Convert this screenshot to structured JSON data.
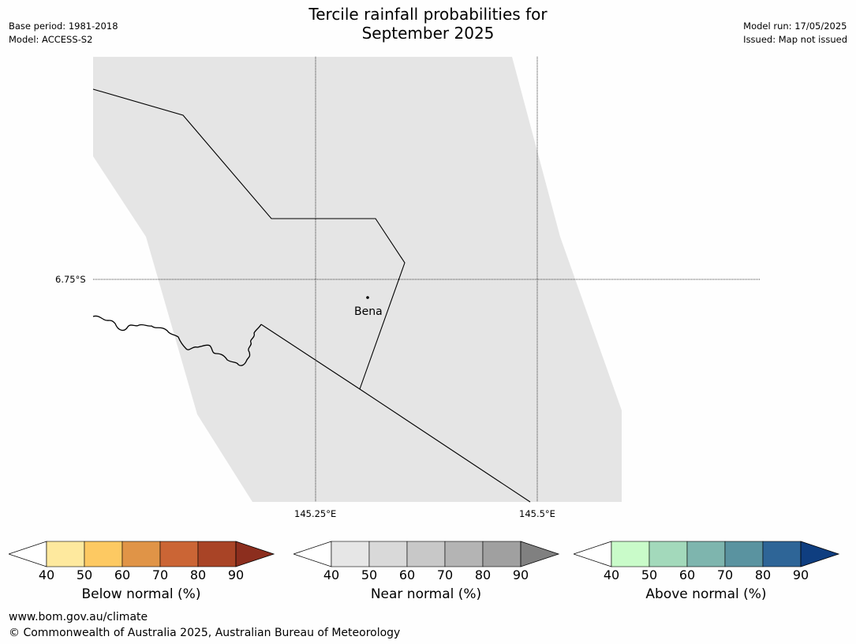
{
  "title_line1": "Tercile rainfall probabilities for",
  "title_line2": "September 2025",
  "meta_left": {
    "base_period": "Base period: 1981-2018",
    "model": "Model: ACCESS-S2"
  },
  "meta_right": {
    "model_run": "Model run: 17/05/2025",
    "issued": "Issued: Map not issued"
  },
  "map": {
    "lat_label": "6.75°S",
    "lon_labels": [
      "145.25°E",
      "145.5°E"
    ],
    "place_label": "Bena",
    "colors": {
      "land": "#e5e5e5",
      "background": "#fefefe"
    }
  },
  "colorbars": [
    {
      "label": "Below normal (%)",
      "ticks": [
        "40",
        "50",
        "60",
        "70",
        "80",
        "90"
      ],
      "colors": [
        "#ffffff",
        "#fee99e",
        "#fdc962",
        "#e09447",
        "#cb6535",
        "#a94426",
        "#8c2e1e"
      ]
    },
    {
      "label": "Near normal (%)",
      "ticks": [
        "40",
        "50",
        "60",
        "70",
        "80",
        "90"
      ],
      "colors": [
        "#ffffff",
        "#e6e6e6",
        "#d9d9d9",
        "#c8c8c8",
        "#b4b4b4",
        "#a0a0a0",
        "#808080"
      ]
    },
    {
      "label": "Above normal (%)",
      "ticks": [
        "40",
        "50",
        "60",
        "70",
        "80",
        "90"
      ],
      "colors": [
        "#ffffff",
        "#c9fbc9",
        "#a3d9bb",
        "#7eb5ae",
        "#5a93a0",
        "#2e6597",
        "#0f3e80"
      ]
    }
  ],
  "footer": {
    "url": "www.bom.gov.au/climate",
    "copyright": "© Commonwealth of Australia 2025, Australian Bureau of Meteorology"
  }
}
